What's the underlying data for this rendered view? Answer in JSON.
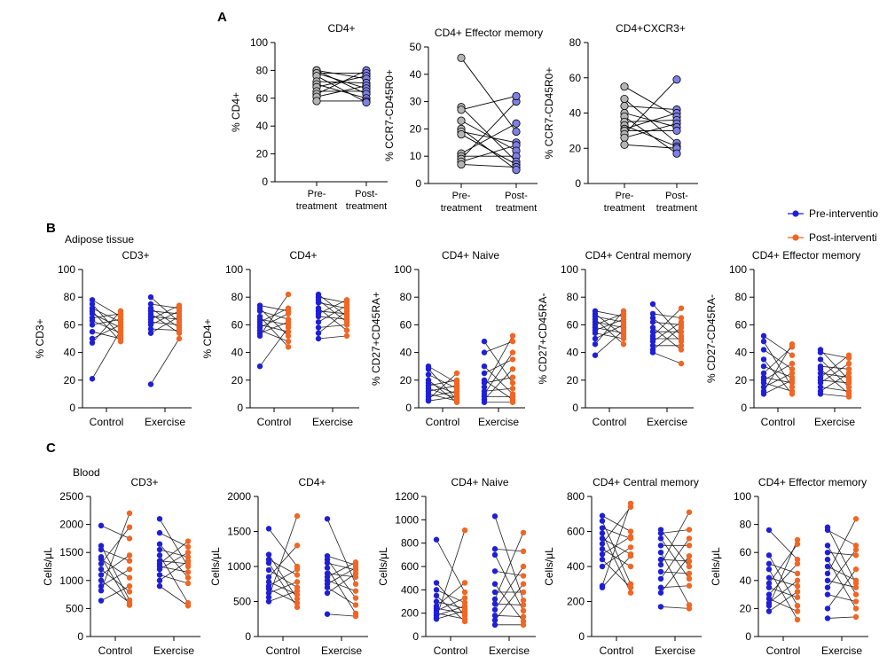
{
  "panel_labels": {
    "a": "A",
    "b": "B",
    "c": "C"
  },
  "section_labels": {
    "b": "Adipose tissue",
    "c": "Blood"
  },
  "legend": {
    "pre": {
      "label": "Pre-interventio",
      "color": "#1f1fd6"
    },
    "post": {
      "label": "Post-interventi",
      "color": "#f26522"
    }
  },
  "colors": {
    "grey_point": "#b4b4b4",
    "lavender_point": "#7f7fe8",
    "pre": "#1f1fd6",
    "post": "#f26522",
    "line": "#000000"
  },
  "chart_data": [
    {
      "id": "a1",
      "type": "scatter",
      "title": "CD4+",
      "ylabel": "% CD4+",
      "categories": [
        "Pre-\ntreatment",
        "Post-\ntreatment"
      ],
      "ylim": [
        0,
        100
      ],
      "yticks": [
        0,
        20,
        40,
        60,
        80,
        100
      ],
      "series": [
        {
          "values": [
            80,
            80,
            78,
            78,
            76,
            72,
            70,
            68,
            65,
            63,
            61,
            58
          ]
        },
        {
          "values": [
            80,
            78,
            76,
            74,
            71,
            69,
            67,
            65,
            63,
            60,
            58,
            57
          ]
        }
      ]
    },
    {
      "id": "a2",
      "type": "scatter",
      "title": "CD4+ Effector memory",
      "ylabel": "% CCR7-CD45R0+",
      "categories": [
        "Pre-\ntreatment",
        "Post-\ntreatment"
      ],
      "ylim": [
        0,
        50
      ],
      "yticks": [
        0,
        10,
        20,
        30,
        40,
        50
      ],
      "series": [
        {
          "values": [
            46,
            28,
            27,
            23,
            20,
            19,
            18,
            11,
            10,
            9,
            8,
            7
          ]
        },
        {
          "values": [
            30,
            32,
            22,
            19,
            15,
            14,
            12,
            10,
            8,
            7,
            6,
            5
          ]
        }
      ]
    },
    {
      "id": "a3",
      "type": "scatter",
      "title": "CD4+CXCR3+",
      "ylabel": "% CCR7-CD45R0+",
      "categories": [
        "Pre-\ntreatment",
        "Post-\ntreatment"
      ],
      "ylim": [
        0,
        80
      ],
      "yticks": [
        0,
        20,
        40,
        60,
        80
      ],
      "series": [
        {
          "values": [
            55,
            48,
            44,
            40,
            38,
            35,
            33,
            31,
            30,
            28,
            26,
            22
          ]
        },
        {
          "values": [
            59,
            42,
            40,
            38,
            36,
            34,
            32,
            30,
            23,
            21,
            20,
            17
          ]
        }
      ]
    },
    {
      "id": "b1",
      "type": "scatter",
      "title": "CD3+",
      "ylabel": "% CD3+",
      "categories": [
        "Control",
        "Exercise"
      ],
      "ylim": [
        0,
        100
      ],
      "yticks": [
        0,
        20,
        40,
        60,
        80,
        100
      ],
      "series": [
        {
          "name": "Pre-interventio",
          "x": 0,
          "values": [
            78,
            75,
            72,
            70,
            68,
            65,
            63,
            60,
            55,
            50,
            47,
            21
          ]
        },
        {
          "name": "Post-interventi",
          "x": 0,
          "values": [
            70,
            68,
            66,
            64,
            62,
            60,
            58,
            56,
            54,
            52,
            50,
            48
          ]
        },
        {
          "name": "Pre-interventio",
          "x": 1,
          "values": [
            80,
            75,
            72,
            70,
            68,
            66,
            64,
            62,
            60,
            57,
            54,
            17
          ]
        },
        {
          "name": "Post-interventi",
          "x": 1,
          "values": [
            74,
            72,
            70,
            68,
            66,
            64,
            62,
            60,
            58,
            56,
            54,
            50
          ]
        }
      ]
    },
    {
      "id": "b2",
      "type": "scatter",
      "title": "CD4+",
      "ylabel": "% CD4+",
      "categories": [
        "Control",
        "Exercise"
      ],
      "ylim": [
        0,
        100
      ],
      "yticks": [
        0,
        20,
        40,
        60,
        80,
        100
      ],
      "series": [
        {
          "name": "Pre-interventio",
          "x": 0,
          "values": [
            74,
            72,
            70,
            66,
            64,
            62,
            60,
            58,
            56,
            54,
            52,
            30
          ]
        },
        {
          "name": "Post-interventi",
          "x": 0,
          "values": [
            82,
            72,
            70,
            68,
            64,
            62,
            60,
            58,
            55,
            52,
            48,
            44
          ]
        },
        {
          "name": "Pre-interventio",
          "x": 1,
          "values": [
            82,
            80,
            78,
            76,
            72,
            70,
            68,
            66,
            62,
            58,
            54,
            50
          ]
        },
        {
          "name": "Post-interventi",
          "x": 1,
          "values": [
            78,
            76,
            74,
            72,
            70,
            68,
            66,
            64,
            62,
            60,
            56,
            52
          ]
        }
      ]
    },
    {
      "id": "b3",
      "type": "scatter",
      "title": "CD4+ Naive",
      "ylabel": "% CD27+CD45RA+",
      "categories": [
        "Control",
        "Exercise"
      ],
      "ylim": [
        0,
        100
      ],
      "yticks": [
        0,
        20,
        40,
        60,
        80,
        100
      ],
      "series": [
        {
          "name": "Pre-interventio",
          "x": 0,
          "values": [
            30,
            28,
            24,
            20,
            18,
            16,
            14,
            12,
            10,
            8,
            6,
            5
          ]
        },
        {
          "name": "Post-interventi",
          "x": 0,
          "values": [
            25,
            20,
            18,
            16,
            14,
            12,
            10,
            8,
            7,
            6,
            5,
            4
          ]
        },
        {
          "name": "Pre-interventio",
          "x": 1,
          "values": [
            48,
            40,
            30,
            25,
            20,
            18,
            15,
            12,
            10,
            8,
            6,
            4
          ]
        },
        {
          "name": "Post-interventi",
          "x": 1,
          "values": [
            52,
            48,
            40,
            35,
            28,
            22,
            18,
            14,
            10,
            8,
            6,
            4
          ]
        }
      ]
    },
    {
      "id": "b4",
      "type": "scatter",
      "title": "CD4+ Central memory",
      "ylabel": "% CD27+CD45RA-",
      "categories": [
        "Control",
        "Exercise"
      ],
      "ylim": [
        0,
        100
      ],
      "yticks": [
        0,
        20,
        40,
        60,
        80,
        100
      ],
      "series": [
        {
          "name": "Pre-interventio",
          "x": 0,
          "values": [
            70,
            68,
            66,
            64,
            62,
            60,
            58,
            56,
            54,
            50,
            46,
            38
          ]
        },
        {
          "name": "Post-interventi",
          "x": 0,
          "values": [
            70,
            68,
            66,
            64,
            62,
            60,
            58,
            56,
            54,
            52,
            50,
            46
          ]
        },
        {
          "name": "Pre-interventio",
          "x": 1,
          "values": [
            75,
            68,
            65,
            62,
            58,
            55,
            52,
            50,
            48,
            45,
            42,
            40
          ]
        },
        {
          "name": "Post-interventi",
          "x": 1,
          "values": [
            72,
            65,
            62,
            60,
            58,
            55,
            52,
            50,
            48,
            45,
            42,
            32
          ]
        }
      ]
    },
    {
      "id": "b5",
      "type": "scatter",
      "title": "CD4+ Effector memory",
      "ylabel": "% CD27-CD45RA-",
      "categories": [
        "Control",
        "Exercise"
      ],
      "ylim": [
        0,
        100
      ],
      "yticks": [
        0,
        20,
        40,
        60,
        80,
        100
      ],
      "series": [
        {
          "name": "Pre-interventio",
          "x": 0,
          "values": [
            52,
            48,
            42,
            35,
            30,
            25,
            22,
            20,
            18,
            15,
            12,
            10
          ]
        },
        {
          "name": "Post-interventi",
          "x": 0,
          "values": [
            46,
            44,
            38,
            32,
            28,
            25,
            22,
            20,
            18,
            15,
            12,
            10
          ]
        },
        {
          "name": "Pre-interventio",
          "x": 1,
          "values": [
            42,
            40,
            35,
            30,
            28,
            25,
            22,
            20,
            18,
            15,
            12,
            10
          ]
        },
        {
          "name": "Post-interventi",
          "x": 1,
          "values": [
            38,
            36,
            32,
            28,
            25,
            22,
            20,
            18,
            15,
            12,
            10,
            8
          ]
        }
      ]
    },
    {
      "id": "c1",
      "type": "scatter",
      "title": "CD3+",
      "ylabel": "Cells/μL",
      "categories": [
        "Control",
        "Exercise"
      ],
      "ylim": [
        0,
        2500
      ],
      "yticks": [
        0,
        500,
        1000,
        1500,
        2000,
        2500
      ],
      "series": [
        {
          "name": "Pre-interventio",
          "x": 0,
          "values": [
            1980,
            1620,
            1550,
            1420,
            1380,
            1300,
            1200,
            1100,
            1000,
            900,
            820,
            640
          ]
        },
        {
          "name": "Post-interventi",
          "x": 0,
          "values": [
            2200,
            1950,
            1750,
            1450,
            1350,
            1200,
            1050,
            900,
            800,
            650,
            600,
            560
          ]
        },
        {
          "name": "Pre-interventio",
          "x": 1,
          "values": [
            2100,
            1850,
            1650,
            1550,
            1450,
            1350,
            1300,
            1250,
            1200,
            1100,
            1000,
            900
          ]
        },
        {
          "name": "Post-interventi",
          "x": 1,
          "values": [
            1700,
            1600,
            1500,
            1420,
            1350,
            1300,
            1250,
            1150,
            1050,
            950,
            600,
            550
          ]
        }
      ]
    },
    {
      "id": "c2",
      "type": "scatter",
      "title": "CD4+",
      "ylabel": "Cells/μL",
      "categories": [
        "Control",
        "Exercise"
      ],
      "ylim": [
        0,
        2000
      ],
      "yticks": [
        0,
        500,
        1000,
        1500,
        2000
      ],
      "series": [
        {
          "name": "Pre-interventio",
          "x": 0,
          "values": [
            1540,
            1170,
            1100,
            1050,
            950,
            850,
            780,
            720,
            680,
            620,
            560,
            500
          ]
        },
        {
          "name": "Post-interventi",
          "x": 0,
          "values": [
            1720,
            1300,
            1000,
            960,
            880,
            780,
            700,
            650,
            600,
            540,
            480,
            420
          ]
        },
        {
          "name": "Pre-interventio",
          "x": 1,
          "values": [
            1680,
            1150,
            1100,
            1050,
            980,
            900,
            850,
            800,
            750,
            700,
            620,
            320
          ]
        },
        {
          "name": "Post-interventi",
          "x": 1,
          "values": [
            1060,
            1020,
            980,
            950,
            900,
            850,
            750,
            650,
            550,
            450,
            330,
            290
          ]
        }
      ]
    },
    {
      "id": "c3",
      "type": "scatter",
      "title": "CD4+ Naive",
      "ylabel": "Cells/μL",
      "categories": [
        "Control",
        "Exercise"
      ],
      "ylim": [
        0,
        1200
      ],
      "yticks": [
        0,
        200,
        400,
        600,
        800,
        1000,
        1200
      ],
      "series": [
        {
          "name": "Pre-interventio",
          "x": 0,
          "values": [
            830,
            460,
            400,
            350,
            300,
            260,
            240,
            220,
            200,
            180,
            160,
            150
          ]
        },
        {
          "name": "Post-interventi",
          "x": 0,
          "values": [
            910,
            460,
            380,
            330,
            290,
            260,
            240,
            220,
            200,
            180,
            150,
            130
          ]
        },
        {
          "name": "Pre-interventio",
          "x": 1,
          "values": [
            1030,
            750,
            700,
            560,
            450,
            380,
            320,
            280,
            230,
            180,
            140,
            100
          ]
        },
        {
          "name": "Post-interventi",
          "x": 1,
          "values": [
            890,
            730,
            600,
            520,
            450,
            380,
            310,
            270,
            220,
            170,
            130,
            100
          ]
        }
      ]
    },
    {
      "id": "c4",
      "type": "scatter",
      "title": "CD4+ Central memory",
      "ylabel": "Cells/μL",
      "categories": [
        "Control",
        "Exercise"
      ],
      "ylim": [
        0,
        800
      ],
      "yticks": [
        0,
        200,
        400,
        600,
        800
      ],
      "series": [
        {
          "name": "Pre-interventio",
          "x": 0,
          "values": [
            690,
            660,
            620,
            590,
            560,
            530,
            500,
            470,
            440,
            400,
            290,
            280
          ]
        },
        {
          "name": "Post-interventi",
          "x": 0,
          "values": [
            760,
            740,
            600,
            570,
            560,
            510,
            470,
            460,
            400,
            300,
            280,
            250
          ]
        },
        {
          "name": "Pre-interventio",
          "x": 1,
          "values": [
            610,
            590,
            560,
            520,
            480,
            440,
            410,
            370,
            330,
            280,
            250,
            170
          ]
        },
        {
          "name": "Post-interventi",
          "x": 1,
          "values": [
            710,
            610,
            560,
            520,
            460,
            430,
            400,
            360,
            330,
            290,
            180,
            160
          ]
        }
      ]
    },
    {
      "id": "c5",
      "type": "scatter",
      "title": "CD4+ Effector memory",
      "ylabel": "Cells/μL",
      "categories": [
        "Control",
        "Exercise"
      ],
      "ylim": [
        0,
        100
      ],
      "yticks": [
        0,
        20,
        40,
        60,
        80,
        100
      ],
      "series": [
        {
          "name": "Pre-interventio",
          "x": 0,
          "values": [
            76,
            58,
            52,
            48,
            42,
            38,
            35,
            30,
            27,
            24,
            22,
            18
          ]
        },
        {
          "name": "Post-interventi",
          "x": 0,
          "values": [
            69,
            66,
            55,
            52,
            45,
            40,
            36,
            32,
            28,
            22,
            18,
            12
          ]
        },
        {
          "name": "Pre-interventio",
          "x": 1,
          "values": [
            78,
            76,
            65,
            60,
            55,
            50,
            45,
            40,
            35,
            30,
            20,
            13
          ]
        },
        {
          "name": "Post-interventi",
          "x": 1,
          "values": [
            84,
            65,
            62,
            58,
            48,
            40,
            38,
            35,
            30,
            25,
            20,
            14
          ]
        }
      ]
    }
  ]
}
